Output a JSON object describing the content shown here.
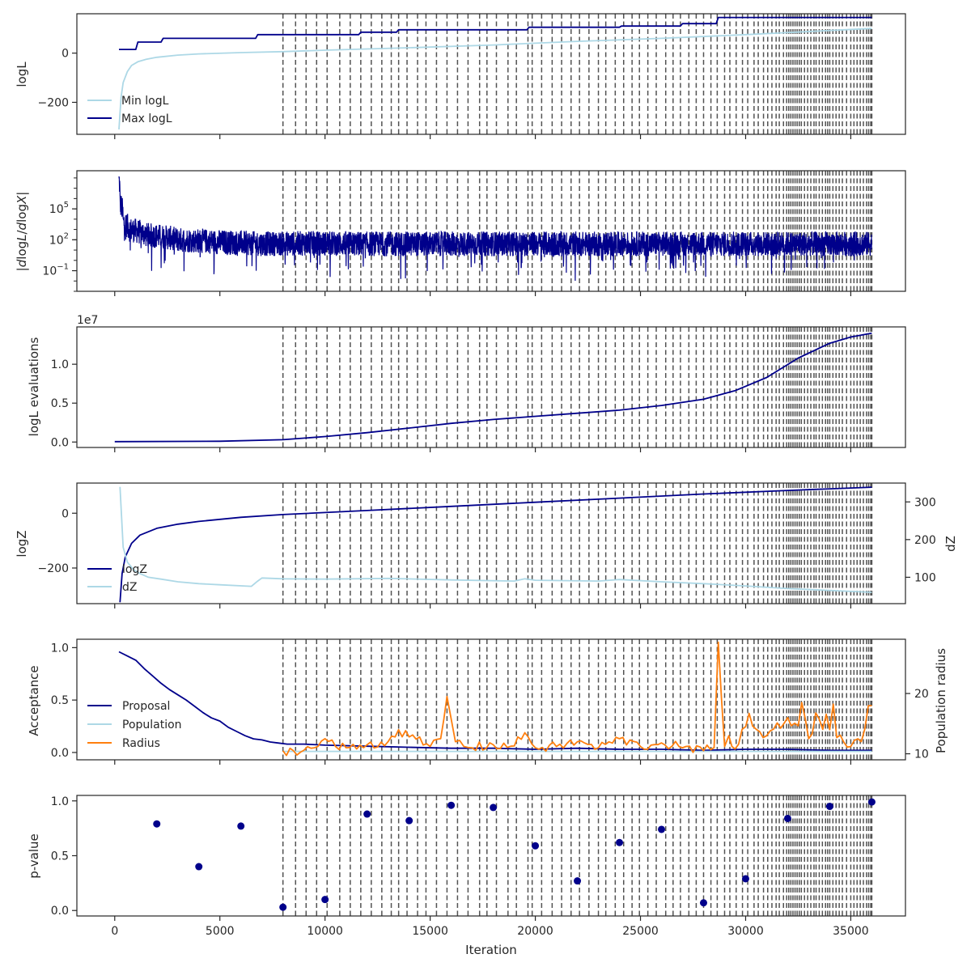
{
  "chart_data": [
    {
      "type": "line",
      "ylabel": "logL",
      "xlim": [
        -1800,
        37600
      ],
      "ylim": [
        -330,
        160
      ],
      "yticks": [
        {
          "v": 0,
          "t": "0"
        },
        {
          "v": -200,
          "t": "−200"
        }
      ],
      "legend_placement": "lower-left",
      "series": [
        {
          "name": "Min logL",
          "color": "#add8e6",
          "x": [
            200,
            300,
            400,
            600,
            800,
            1100,
            1500,
            2000,
            3000,
            4000,
            6000,
            8000,
            10000,
            14000,
            18000,
            22000,
            26000,
            30000,
            34000,
            36000
          ],
          "y": [
            -310,
            -180,
            -120,
            -75,
            -50,
            -35,
            -25,
            -17,
            -8,
            -3,
            2,
            6,
            12,
            22,
            33,
            48,
            60,
            75,
            92,
            100
          ]
        },
        {
          "name": "Max logL",
          "color": "#00008b",
          "step": true,
          "x": [
            200,
            1000,
            1100,
            2200,
            2300,
            6700,
            6800,
            11600,
            11700,
            13400,
            13500,
            19600,
            19700,
            24000,
            24100,
            26900,
            27000,
            28600,
            28700,
            36000
          ],
          "y": [
            15,
            15,
            45,
            45,
            60,
            60,
            75,
            75,
            85,
            85,
            95,
            95,
            105,
            105,
            110,
            110,
            120,
            120,
            145,
            145
          ]
        }
      ]
    },
    {
      "type": "line",
      "ylabel": "|dlogL/dlogX|",
      "ylabel_parts": {
        "pre": "|",
        "d1": "d",
        "a": "log",
        "L": "L",
        "slash": "/",
        "d2": "d",
        "b": "log",
        "X": "X",
        "post": "|"
      },
      "yscale": "log",
      "xlim": [
        -1800,
        37600
      ],
      "ylim": [
        0.001,
        500000000
      ],
      "yticks": [
        {
          "v": 100000,
          "t": "10",
          "e": "5"
        },
        {
          "v": 100,
          "t": "10",
          "e": "2"
        },
        {
          "v": 0.1,
          "t": "10",
          "e": "−1"
        }
      ],
      "series": [
        {
          "color": "#00008b",
          "noisy": true,
          "x": [
            200,
            250,
            400,
            700,
            1500,
            3000,
            5000,
            7000,
            9000,
            12000,
            16000,
            20000,
            24000,
            28000,
            32000,
            36000
          ],
          "y": [
            60000000,
            300000,
            5000,
            1000,
            300,
            100,
            60,
            40,
            45,
            40,
            40,
            40,
            40,
            40,
            40,
            40
          ]
        }
      ]
    },
    {
      "type": "line",
      "ylabel": "logL evaluations",
      "offset_text": "1e7",
      "xlim": [
        -1800,
        37600
      ],
      "ylim": [
        -0.07,
        1.48
      ],
      "yticks": [
        {
          "v": 0,
          "t": "0.0"
        },
        {
          "v": 0.5,
          "t": "0.5"
        },
        {
          "v": 1.0,
          "t": "1.0"
        }
      ],
      "series": [
        {
          "color": "#00008b",
          "x": [
            0,
            5000,
            8000,
            10000,
            12000,
            14000,
            16000,
            18000,
            20000,
            22000,
            24000,
            26000,
            28000,
            29500,
            31000,
            32500,
            34000,
            35000,
            36000
          ],
          "y": [
            0.005,
            0.01,
            0.03,
            0.07,
            0.12,
            0.18,
            0.24,
            0.29,
            0.33,
            0.37,
            0.41,
            0.47,
            0.55,
            0.66,
            0.83,
            1.08,
            1.27,
            1.35,
            1.4
          ]
        }
      ]
    },
    {
      "type": "line",
      "ylabel": "logZ",
      "ylabel_right": "dZ",
      "xlim": [
        -1800,
        37600
      ],
      "ylim": [
        -330,
        110
      ],
      "ylim_right": [
        30,
        350
      ],
      "yticks": [
        {
          "v": 0,
          "t": "0"
        },
        {
          "v": -200,
          "t": "−200"
        }
      ],
      "yticks_right": [
        {
          "v": 300,
          "t": "300"
        },
        {
          "v": 200,
          "t": "200"
        },
        {
          "v": 100,
          "t": "100"
        }
      ],
      "legend_placement": "lower-left",
      "series": [
        {
          "name": "logZ",
          "color": "#00008b",
          "axis": "left",
          "x": [
            250,
            350,
            500,
            800,
            1200,
            2000,
            3000,
            4000,
            6000,
            8000,
            12000,
            16000,
            20000,
            24000,
            28000,
            32000,
            36000
          ],
          "y": [
            -325,
            -220,
            -160,
            -110,
            -80,
            -55,
            -40,
            -30,
            -15,
            -5,
            10,
            25,
            40,
            55,
            70,
            83,
            95
          ]
        },
        {
          "name": "dZ",
          "color": "#add8e6",
          "axis": "right",
          "x": [
            250,
            400,
            600,
            900,
            1200,
            1600,
            2200,
            3000,
            4000,
            5000,
            6500,
            6800,
            7000,
            8000,
            10000,
            13000,
            16000,
            19000,
            19500,
            20000,
            23000,
            24000,
            26000,
            28000,
            30000,
            32000,
            34000,
            36000
          ],
          "y": [
            340,
            180,
            140,
            120,
            110,
            100,
            95,
            88,
            83,
            80,
            76,
            90,
            98,
            96,
            95,
            97,
            93,
            90,
            96,
            92,
            90,
            94,
            88,
            83,
            77,
            70,
            65,
            60
          ]
        }
      ]
    },
    {
      "type": "line",
      "ylabel": "Acceptance",
      "ylabel_right": "Population radius",
      "xlim": [
        -1800,
        37600
      ],
      "ylim": [
        -0.07,
        1.08
      ],
      "ylim_right": [
        9,
        29
      ],
      "yticks": [
        {
          "v": 0,
          "t": "0.0"
        },
        {
          "v": 0.5,
          "t": "0.5"
        },
        {
          "v": 1.0,
          "t": "1.0"
        }
      ],
      "yticks_right": [
        {
          "v": 20,
          "t": "20"
        },
        {
          "v": 10,
          "t": "10"
        }
      ],
      "legend_placement": "lower-left",
      "series": [
        {
          "name": "Proposal",
          "color": "#00008b",
          "axis": "left",
          "x": [
            200,
            600,
            1000,
            1400,
            1800,
            2200,
            2600,
            3000,
            3400,
            3800,
            4200,
            4600,
            5000,
            5400,
            5800,
            6200,
            6600,
            7000,
            7400,
            7800,
            8200,
            9000,
            10000,
            12000,
            14000,
            16000,
            18000,
            20000,
            22000,
            24000,
            26000,
            28000,
            30000,
            32000,
            34000,
            36000
          ],
          "y": [
            0.96,
            0.92,
            0.88,
            0.8,
            0.73,
            0.66,
            0.6,
            0.55,
            0.5,
            0.44,
            0.38,
            0.33,
            0.3,
            0.24,
            0.2,
            0.16,
            0.13,
            0.12,
            0.1,
            0.09,
            0.08,
            0.08,
            0.07,
            0.06,
            0.05,
            0.04,
            0.04,
            0.03,
            0.04,
            0.03,
            0.03,
            0.02,
            0.03,
            0.03,
            0.02,
            0.02
          ]
        },
        {
          "name": "Population",
          "color": "#add8e6",
          "axis": "left",
          "x": [
            8000,
            36000
          ],
          "y": [
            0.01,
            0.01
          ]
        },
        {
          "name": "Radius",
          "color": "#ff7f0e",
          "axis": "right",
          "spiky": true,
          "x": [
            8000,
            9000,
            9500,
            10000,
            10500,
            11000,
            12000,
            13000,
            13500,
            14000,
            15000,
            15500,
            15800,
            16200,
            17000,
            18000,
            19000,
            19500,
            20000,
            21000,
            22000,
            23000,
            24000,
            25000,
            26000,
            27000,
            28000,
            28500,
            28700,
            29000,
            29200,
            29500,
            30000,
            31000,
            32000,
            33000,
            34000,
            35000,
            35500,
            36000
          ],
          "y": [
            10.5,
            10.6,
            11.0,
            12.5,
            11.2,
            11.0,
            11.5,
            12.0,
            14.0,
            12.8,
            11.2,
            12.5,
            19.5,
            12.0,
            11.0,
            11.5,
            11.3,
            13.5,
            11.0,
            11.2,
            12.0,
            11.0,
            12.5,
            11.2,
            11.8,
            11.0,
            10.5,
            11.0,
            28.5,
            11.2,
            13.0,
            10.8,
            14.5,
            13.0,
            16.0,
            12.5,
            14.0,
            11.2,
            12.0,
            18.0
          ]
        }
      ]
    },
    {
      "type": "scatter",
      "ylabel": "p-value",
      "xlabel": "Iteration",
      "xlim": [
        -1800,
        37600
      ],
      "ylim": [
        -0.05,
        1.05
      ],
      "yticks": [
        {
          "v": 0,
          "t": "0.0"
        },
        {
          "v": 0.5,
          "t": "0.5"
        },
        {
          "v": 1.0,
          "t": "1.0"
        }
      ],
      "xticks": [
        {
          "v": 0,
          "t": "0"
        },
        {
          "v": 5000,
          "t": "5000"
        },
        {
          "v": 10000,
          "t": "10000"
        },
        {
          "v": 15000,
          "t": "15000"
        },
        {
          "v": 20000,
          "t": "20000"
        },
        {
          "v": 25000,
          "t": "25000"
        },
        {
          "v": 30000,
          "t": "30000"
        },
        {
          "v": 35000,
          "t": "35000"
        }
      ],
      "series": [
        {
          "color": "#00008b",
          "x": [
            2000,
            4000,
            6000,
            8000,
            10000,
            12000,
            14000,
            16000,
            18000,
            20000,
            22000,
            24000,
            26000,
            28000,
            30000,
            32000,
            34000,
            36000
          ],
          "y": [
            0.79,
            0.4,
            0.77,
            0.03,
            0.1,
            0.88,
            0.82,
            0.96,
            0.94,
            0.59,
            0.27,
            0.62,
            0.74,
            0.07,
            0.29,
            0.84,
            0.95,
            0.99
          ]
        }
      ]
    }
  ],
  "vlines": {
    "color": "#404040",
    "x": [
      8000,
      8600,
      9100,
      9600,
      10100,
      10700,
      11200,
      11700,
      12200,
      12700,
      13150,
      13500,
      13900,
      14400,
      14800,
      15300,
      15800,
      16300,
      16800,
      17350,
      17700,
      18150,
      18700,
      19100,
      19650,
      19850,
      20300,
      20800,
      21250,
      21700,
      22100,
      22550,
      23000,
      23350,
      23800,
      24200,
      24600,
      24950,
      25350,
      25750,
      26200,
      26550,
      26900,
      27300,
      27650,
      28000,
      28350,
      28650,
      29000,
      29250,
      29550,
      29850,
      30100,
      30400,
      30600,
      30850,
      31050,
      31250,
      31450,
      31600,
      31800,
      31950,
      32050,
      32150,
      32250,
      32350,
      32450,
      32550,
      32650,
      32800,
      32950,
      33100,
      33250,
      33350,
      33500,
      33650,
      33800,
      33900,
      34000,
      34150,
      34300,
      34450,
      34600,
      34800,
      35000,
      35150,
      35300,
      35450,
      35600,
      35750,
      35850,
      35950,
      36000
    ]
  }
}
